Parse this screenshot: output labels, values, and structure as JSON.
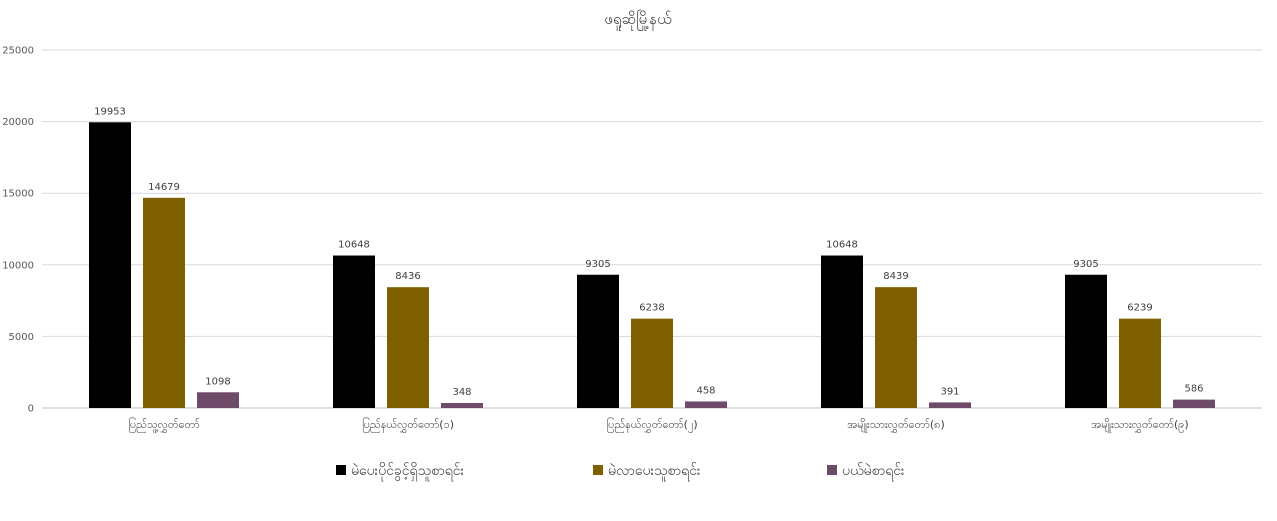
{
  "chart_data": {
    "type": "bar",
    "title": "ဖရူဆိုမြို့နယ်",
    "categories": [
      "ပြည်သူ့လွှတ်တော်",
      "ပြည်နယ်လွှတ်တော်(၁)",
      "ပြည်နယ်လွှတ်တော်(၂)",
      "အမျိုးသားလွှတ်တော်(၈)",
      "အမျိုးသားလွှတ်တော်(၉)"
    ],
    "series": [
      {
        "name": "မဲပေးပိုင်ခွင့်ရှိသူစာရင်း",
        "color": "#000000",
        "values": [
          19953,
          10648,
          9305,
          10648,
          9305
        ]
      },
      {
        "name": "မဲလာပေးသူစာရင်း",
        "color": "#7f6000",
        "values": [
          14679,
          8436,
          6238,
          8439,
          6239
        ]
      },
      {
        "name": "ပယ်မဲစာရင်း",
        "color": "#6e4c69",
        "values": [
          1098,
          348,
          458,
          391,
          586
        ]
      }
    ],
    "yticks": [
      "0",
      "5000",
      "10000",
      "15000",
      "20000",
      "25000"
    ],
    "ylim": [
      0,
      25000
    ],
    "grid": true,
    "legend": "bottom"
  }
}
